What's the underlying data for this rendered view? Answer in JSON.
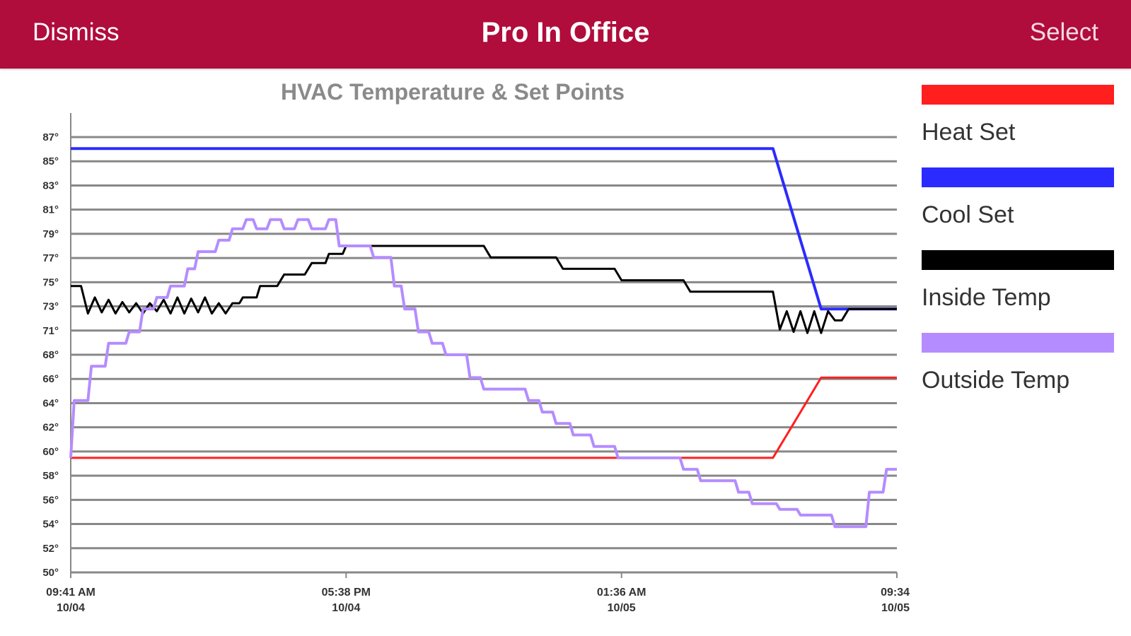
{
  "navbar": {
    "dismiss_label": "Dismiss",
    "title": "Pro In Office",
    "select_label": "Select"
  },
  "colors": {
    "navbar_bg": "#b00c3c",
    "heat": "#ff1f1f",
    "cool": "#2b2bff",
    "inside": "#000000",
    "outside": "#b58cff",
    "grid": "#888888"
  },
  "chart_data": {
    "type": "line",
    "title": "HVAC Temperature & Set Points",
    "y_ticks": [
      "50°",
      "52°",
      "54°",
      "56°",
      "58°",
      "60°",
      "62°",
      "64°",
      "66°",
      "68°",
      "71°",
      "73°",
      "75°",
      "77°",
      "79°",
      "81°",
      "83°",
      "85°",
      "87°"
    ],
    "x_ticks": [
      {
        "time": "09:41 AM",
        "date": "10/04"
      },
      {
        "time": "05:38 PM",
        "date": "10/04"
      },
      {
        "time": "01:36 AM",
        "date": "10/05"
      },
      {
        "time": "09:34",
        "date": "10/05"
      }
    ],
    "x_range_hours": [
      0,
      24
    ],
    "ylim": [
      50,
      88
    ],
    "legend_position": "right",
    "series": [
      {
        "name": "Heat Set",
        "color": "#ff1f1f",
        "points": [
          [
            0,
            60
          ],
          [
            20.4,
            60
          ],
          [
            20.6,
            61
          ],
          [
            20.8,
            62
          ],
          [
            21.0,
            63
          ],
          [
            21.2,
            64
          ],
          [
            21.4,
            65
          ],
          [
            21.6,
            66
          ],
          [
            21.8,
            67
          ],
          [
            24,
            67
          ]
        ]
      },
      {
        "name": "Cool Set",
        "color": "#2b2bff",
        "points": [
          [
            0,
            87
          ],
          [
            20.4,
            87
          ],
          [
            20.6,
            85
          ],
          [
            20.8,
            83
          ],
          [
            21.0,
            81
          ],
          [
            21.2,
            79
          ],
          [
            21.4,
            77
          ],
          [
            21.6,
            75
          ],
          [
            21.8,
            73
          ],
          [
            24,
            73
          ]
        ]
      },
      {
        "name": "Inside Temp",
        "color": "#000000",
        "points": [
          [
            0,
            75
          ],
          [
            0.3,
            75
          ],
          [
            0.5,
            72.6
          ],
          [
            0.7,
            74
          ],
          [
            0.9,
            72.7
          ],
          [
            1.1,
            73.8
          ],
          [
            1.3,
            72.6
          ],
          [
            1.5,
            73.6
          ],
          [
            1.7,
            72.7
          ],
          [
            1.9,
            73.5
          ],
          [
            2.1,
            72.6
          ],
          [
            2.3,
            73.5
          ],
          [
            2.5,
            72.8
          ],
          [
            2.7,
            73.8
          ],
          [
            2.9,
            72.6
          ],
          [
            3.1,
            74
          ],
          [
            3.3,
            72.6
          ],
          [
            3.5,
            73.9
          ],
          [
            3.7,
            72.7
          ],
          [
            3.9,
            74
          ],
          [
            4.1,
            72.6
          ],
          [
            4.3,
            73.5
          ],
          [
            4.5,
            72.6
          ],
          [
            4.7,
            73.5
          ],
          [
            4.9,
            73.5
          ],
          [
            5.0,
            74
          ],
          [
            5.4,
            74
          ],
          [
            5.5,
            75
          ],
          [
            6.0,
            75
          ],
          [
            6.2,
            76
          ],
          [
            6.8,
            76
          ],
          [
            7.0,
            77
          ],
          [
            7.4,
            77
          ],
          [
            7.5,
            77.8
          ],
          [
            7.9,
            77.8
          ],
          [
            8.0,
            78.5
          ],
          [
            12.0,
            78.5
          ],
          [
            12.2,
            77.5
          ],
          [
            14.1,
            77.5
          ],
          [
            14.3,
            76.5
          ],
          [
            15.8,
            76.5
          ],
          [
            16.0,
            75.5
          ],
          [
            17.8,
            75.5
          ],
          [
            18.0,
            74.5
          ],
          [
            20.4,
            74.5
          ],
          [
            20.6,
            71.2
          ],
          [
            20.8,
            72.8
          ],
          [
            21.0,
            71.0
          ],
          [
            21.2,
            72.8
          ],
          [
            21.4,
            70.9
          ],
          [
            21.6,
            72.8
          ],
          [
            21.8,
            70.9
          ],
          [
            22.0,
            72.8
          ],
          [
            22.2,
            72
          ],
          [
            22.4,
            72
          ],
          [
            22.6,
            73
          ],
          [
            24,
            73
          ]
        ]
      },
      {
        "name": "Outside Temp",
        "color": "#b58cff",
        "points": [
          [
            0,
            60
          ],
          [
            0.1,
            65
          ],
          [
            0.5,
            65
          ],
          [
            0.6,
            68
          ],
          [
            1.0,
            68
          ],
          [
            1.1,
            70
          ],
          [
            1.6,
            70
          ],
          [
            1.7,
            71
          ],
          [
            2.0,
            71
          ],
          [
            2.1,
            73
          ],
          [
            2.4,
            73
          ],
          [
            2.5,
            74
          ],
          [
            2.8,
            74
          ],
          [
            2.9,
            75
          ],
          [
            3.3,
            75
          ],
          [
            3.4,
            76.5
          ],
          [
            3.6,
            76.5
          ],
          [
            3.7,
            78
          ],
          [
            4.2,
            78
          ],
          [
            4.3,
            79
          ],
          [
            4.6,
            79
          ],
          [
            4.7,
            80
          ],
          [
            5.0,
            80
          ],
          [
            5.1,
            80.8
          ],
          [
            5.3,
            80.8
          ],
          [
            5.4,
            80
          ],
          [
            5.7,
            80
          ],
          [
            5.8,
            80.8
          ],
          [
            6.1,
            80.8
          ],
          [
            6.2,
            80
          ],
          [
            6.5,
            80
          ],
          [
            6.6,
            80.8
          ],
          [
            6.9,
            80.8
          ],
          [
            7.0,
            80
          ],
          [
            7.4,
            80
          ],
          [
            7.5,
            80.8
          ],
          [
            7.7,
            80.8
          ],
          [
            7.8,
            78.5
          ],
          [
            8.7,
            78.5
          ],
          [
            8.8,
            77.5
          ],
          [
            9.3,
            77.5
          ],
          [
            9.4,
            75
          ],
          [
            9.6,
            75
          ],
          [
            9.7,
            73
          ],
          [
            10.0,
            73
          ],
          [
            10.1,
            71
          ],
          [
            10.4,
            71
          ],
          [
            10.5,
            70
          ],
          [
            10.8,
            70
          ],
          [
            10.9,
            69
          ],
          [
            11.5,
            69
          ],
          [
            11.6,
            67
          ],
          [
            11.9,
            67
          ],
          [
            12.0,
            66
          ],
          [
            13.2,
            66
          ],
          [
            13.3,
            65
          ],
          [
            13.6,
            65
          ],
          [
            13.7,
            64
          ],
          [
            14.0,
            64
          ],
          [
            14.1,
            63
          ],
          [
            14.5,
            63
          ],
          [
            14.6,
            62
          ],
          [
            15.1,
            62
          ],
          [
            15.2,
            61
          ],
          [
            15.8,
            61
          ],
          [
            15.9,
            60
          ],
          [
            16.8,
            60
          ],
          [
            16.9,
            60
          ],
          [
            17.7,
            60
          ],
          [
            17.8,
            59
          ],
          [
            18.2,
            59
          ],
          [
            18.3,
            58
          ],
          [
            19.3,
            58
          ],
          [
            19.4,
            57
          ],
          [
            19.7,
            57
          ],
          [
            19.8,
            56
          ],
          [
            20.5,
            56
          ],
          [
            20.6,
            55.5
          ],
          [
            21.1,
            55.5
          ],
          [
            21.2,
            55
          ],
          [
            22.1,
            55
          ],
          [
            22.2,
            54
          ],
          [
            23.1,
            54
          ],
          [
            23.2,
            57
          ],
          [
            23.6,
            57
          ],
          [
            23.7,
            59
          ],
          [
            24,
            59
          ]
        ]
      }
    ]
  }
}
